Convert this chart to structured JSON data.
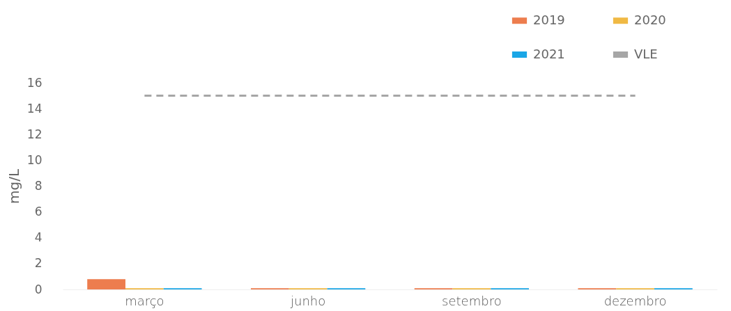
{
  "chart_data": {
    "type": "bar",
    "ylabel": "mg/L",
    "categories": [
      "março",
      "junho",
      "setembro",
      "dezembro"
    ],
    "series": [
      {
        "name": "2019",
        "color": "#ed7d4e",
        "values": [
          0.8,
          0.1,
          0.1,
          0.1
        ]
      },
      {
        "name": "2020",
        "color": "#f0b944",
        "values": [
          0.1,
          0.1,
          0.1,
          0.1
        ]
      },
      {
        "name": "2021",
        "color": "#1aa6e6",
        "values": [
          0.1,
          0.1,
          0.1,
          0.1
        ]
      },
      {
        "name": "VLE",
        "type": "line",
        "line_style": "dashed",
        "color": "#a6a6a6",
        "values": [
          15,
          15,
          15,
          15
        ]
      }
    ],
    "ylim": [
      0,
      16
    ],
    "yticks": [
      0,
      2,
      4,
      6,
      8,
      10,
      12,
      14,
      16
    ],
    "grid": false,
    "legend": "top right"
  }
}
